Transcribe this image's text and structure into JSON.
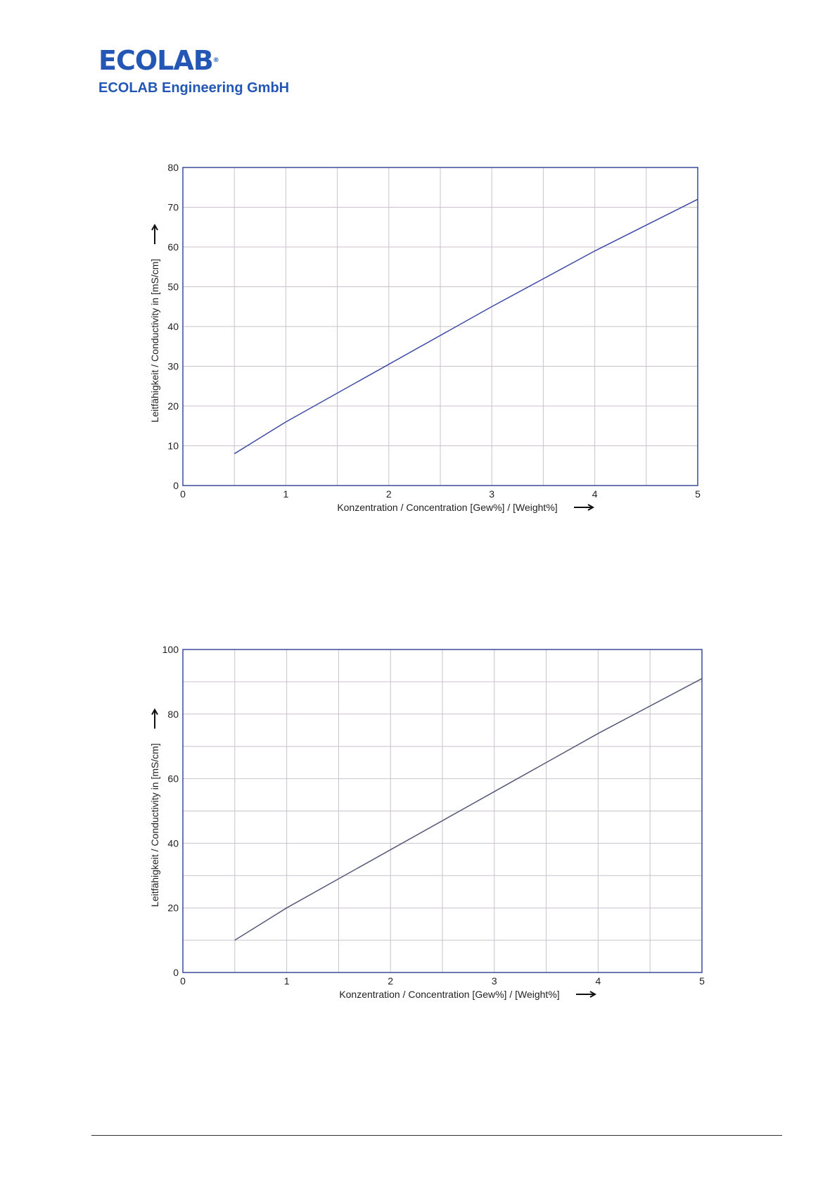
{
  "header": {
    "logo_text": "ECOLAB",
    "logo_mark": "®",
    "company_name": "ECOLAB Engineering GmbH"
  },
  "colors": {
    "brand": "#2457b5",
    "frame": "#3b4a9a",
    "grid": "#c9c2cc",
    "line_chart_1": "#3e4aa6",
    "line_chart_2": "#565878",
    "text": "#222222"
  },
  "chart_data": [
    {
      "type": "line",
      "title": "",
      "xlabel": "Konzentration / Concentration [Gew%] / [Weight%]",
      "ylabel": "Leitfähigkeit / Conductivity in [mS/cm]",
      "xlim": [
        0,
        5
      ],
      "ylim": [
        0,
        80
      ],
      "x_ticks": [
        0,
        1,
        2,
        3,
        4,
        5
      ],
      "y_ticks": [
        0,
        10,
        20,
        30,
        40,
        50,
        60,
        70,
        80
      ],
      "x_grid_step": 0.5,
      "grid": true,
      "series": [
        {
          "x": [
            0.5,
            1,
            2,
            3,
            4,
            5
          ],
          "y": [
            8,
            16,
            30.5,
            45,
            59,
            72
          ]
        }
      ]
    },
    {
      "type": "line",
      "title": "",
      "xlabel": "Konzentration / Concentration [Gew%] / [Weight%]",
      "ylabel": "Leitfähigkeit / Conductivity in [mS/cm]",
      "xlim": [
        0,
        5
      ],
      "ylim": [
        0,
        100
      ],
      "x_ticks": [
        0,
        1,
        2,
        3,
        4,
        5
      ],
      "y_ticks": [
        0,
        20,
        40,
        60,
        80,
        100
      ],
      "y_grid_step": 10,
      "x_grid_step": 0.5,
      "grid": true,
      "series": [
        {
          "x": [
            0.5,
            1,
            2,
            3,
            4,
            5
          ],
          "y": [
            10,
            20,
            38,
            56,
            74,
            91
          ]
        }
      ]
    }
  ]
}
